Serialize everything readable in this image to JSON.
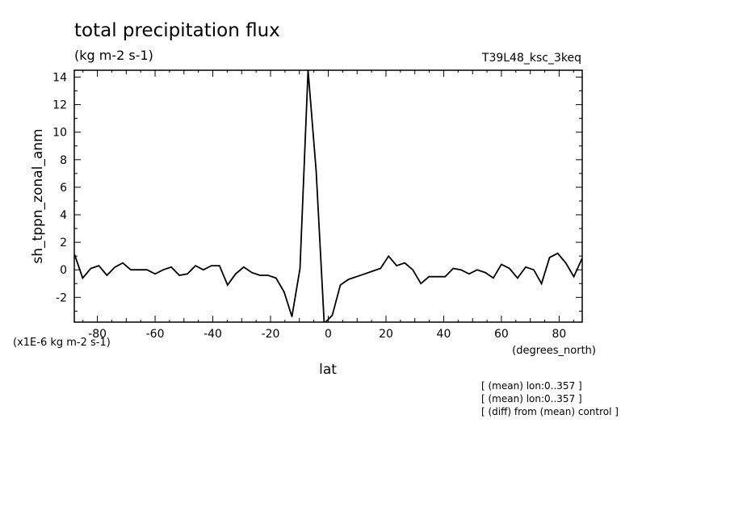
{
  "chart_data": {
    "type": "line",
    "title": "total precipitation flux",
    "units": "(kg m-2 s-1)",
    "run_label": "T39L48_ksc_3keq",
    "ylabel": "sh_tppn_zonal_anm",
    "xlabel": "lat",
    "x_units": "(degrees_north)",
    "y_scale_note": "(x1E-6 kg m-2 s-1)",
    "xlim": [
      -88,
      88
    ],
    "ylim": [
      -3.8,
      14.5
    ],
    "x_ticks": [
      -80,
      -60,
      -40,
      -20,
      0,
      20,
      40,
      60,
      80
    ],
    "x_tick_labels": [
      "-80",
      "-60",
      "-40",
      "-20",
      "0",
      "20",
      "40",
      "60",
      "80"
    ],
    "y_ticks": [
      -2,
      0,
      2,
      4,
      6,
      8,
      10,
      12,
      14
    ],
    "y_tick_labels": [
      "-2",
      "0",
      "2",
      "4",
      "6",
      "8",
      "10",
      "12",
      "14"
    ],
    "grid": false,
    "legend": "none",
    "series": [
      {
        "x": [
          -87.9,
          -85.1,
          -82.3,
          -79.5,
          -76.7,
          -73.9,
          -71.2,
          -68.4,
          -65.6,
          -62.8,
          -60.0,
          -57.2,
          -54.4,
          -51.6,
          -48.8,
          -46.0,
          -43.3,
          -40.5,
          -37.7,
          -34.9,
          -32.1,
          -29.3,
          -26.5,
          -23.7,
          -20.9,
          -18.1,
          -15.3,
          -12.6,
          -9.8,
          -7.0,
          -4.2,
          -1.4,
          1.4,
          4.2,
          7.0,
          9.8,
          12.6,
          15.3,
          18.1,
          20.9,
          23.7,
          26.5,
          29.3,
          32.1,
          34.9,
          37.7,
          40.5,
          43.3,
          46.0,
          48.8,
          51.6,
          54.4,
          57.2,
          60.0,
          62.8,
          65.6,
          68.4,
          71.2,
          73.9,
          76.7,
          79.5,
          82.3,
          85.1,
          87.9
        ],
        "y": [
          1.1,
          -0.6,
          0.1,
          0.3,
          -0.4,
          0.2,
          0.5,
          0.0,
          0.0,
          0.0,
          -0.3,
          0.0,
          0.2,
          -0.4,
          -0.3,
          0.3,
          0.0,
          0.3,
          0.3,
          -1.1,
          -0.3,
          0.2,
          -0.2,
          -0.4,
          -0.4,
          -0.6,
          -1.6,
          -3.4,
          0.1,
          14.5,
          7.2,
          -3.9,
          -3.3,
          -1.1,
          -0.7,
          -0.5,
          -0.3,
          -0.1,
          0.1,
          1.0,
          0.3,
          0.5,
          0.0,
          -1.0,
          -0.5,
          -0.5,
          -0.5,
          0.1,
          0.0,
          -0.3,
          0.0,
          -0.2,
          -0.6,
          0.4,
          0.1,
          -0.6,
          0.2,
          0.0,
          -1.0,
          0.9,
          1.2,
          0.5,
          -0.5,
          0.8
        ]
      }
    ],
    "annotations": [
      "[ (mean) lon:0..357 ]",
      "[ (mean) lon:0..357 ]",
      "[ (diff) from (mean) control ]"
    ]
  }
}
